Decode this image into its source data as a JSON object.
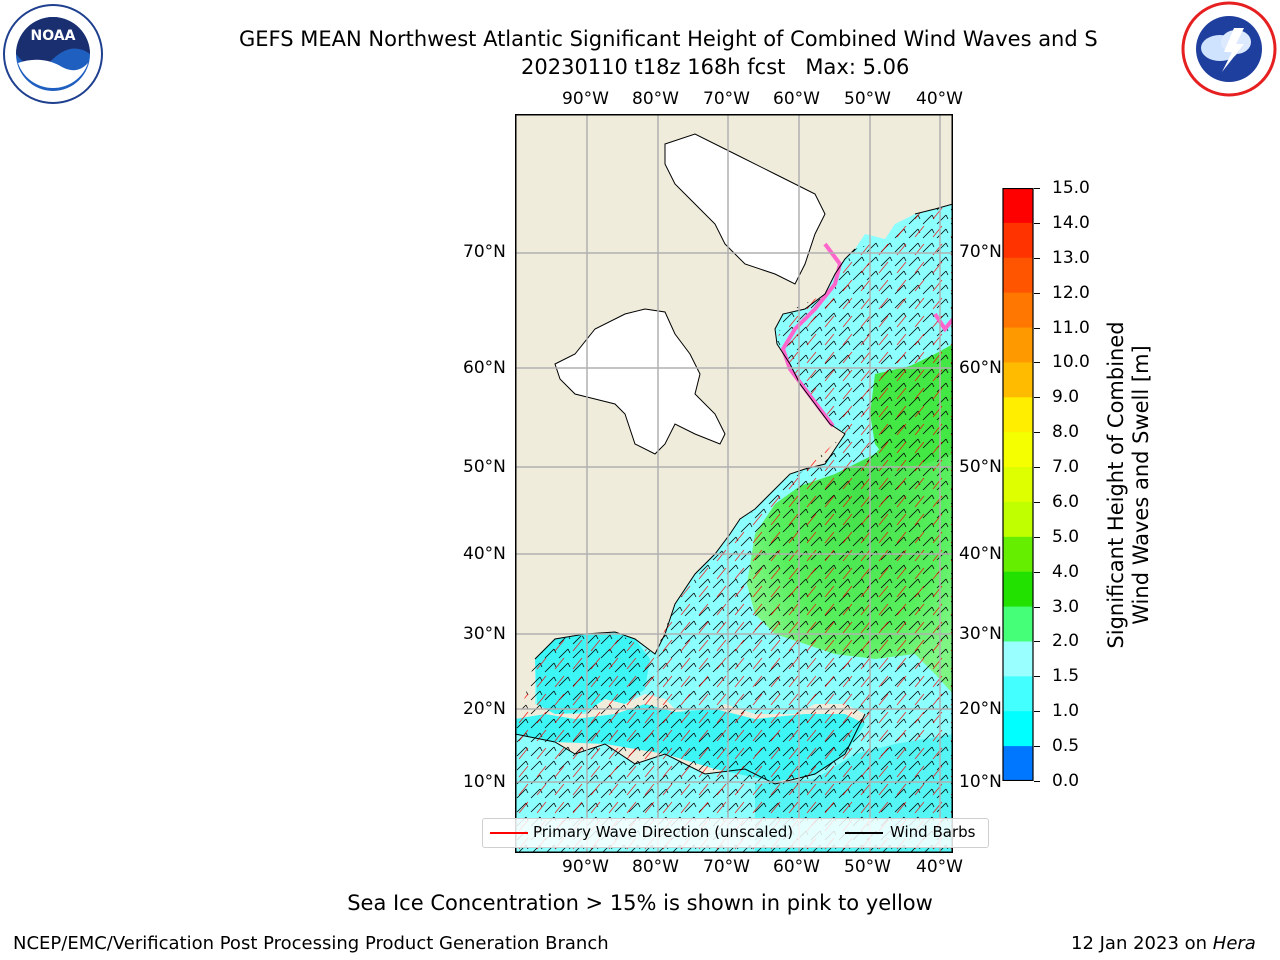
{
  "title": "GEFS MEAN Northwest Atlantic Significant Height of Combined Wind Waves and S",
  "subtitle": "20230110 t18z 168h fcst   Max: 5.06",
  "logos": {
    "left": "noaa-logo",
    "right": "national-weather-service-logo"
  },
  "map": {
    "lon_labels": [
      "90°W",
      "80°W",
      "70°W",
      "60°W",
      "50°W",
      "40°W"
    ],
    "lat_labels": [
      "70°N",
      "60°N",
      "50°N",
      "40°N",
      "30°N",
      "20°N",
      "10°N"
    ],
    "colors": {
      "land": "#efecdc",
      "ice_free_land": "#ffffff",
      "wave_low": "#8cffff",
      "wave_mid": "#3ef5f5",
      "wave_high": "#3fe33f",
      "barb": "#000000",
      "direction": "#ff0000"
    }
  },
  "colorbar": {
    "ticks": [
      "15.0",
      "14.0",
      "13.0",
      "12.0",
      "11.0",
      "10.0",
      "9.0",
      "8.0",
      "7.0",
      "6.0",
      "5.0",
      "4.0",
      "3.0",
      "2.0",
      "1.5",
      "1.0",
      "0.5",
      "0.0"
    ],
    "colors": [
      "#ff0000",
      "#ff3300",
      "#ff5500",
      "#ff7700",
      "#ff9900",
      "#ffbb00",
      "#ffee00",
      "#f5ff00",
      "#ddff00",
      "#c0ff00",
      "#66ee00",
      "#22e000",
      "#44ff77",
      "#99ffff",
      "#44ffff",
      "#00ffff",
      "#0077ff",
      "#0000ff"
    ],
    "title_line1": "Significant Height of Combined",
    "title_line2": "Wind Waves and Swell [m]"
  },
  "legend": {
    "direction_label": "Primary Wave Direction (unscaled)",
    "barbs_label": "Wind Barbs"
  },
  "footnote": "Sea Ice Concentration > 15% is shown in pink to yellow",
  "credit_left": "NCEP/EMC/Verification Post Processing Product Generation Branch",
  "credit_right_text": "12 Jan 2023 on ",
  "credit_right_machine": "Hera"
}
